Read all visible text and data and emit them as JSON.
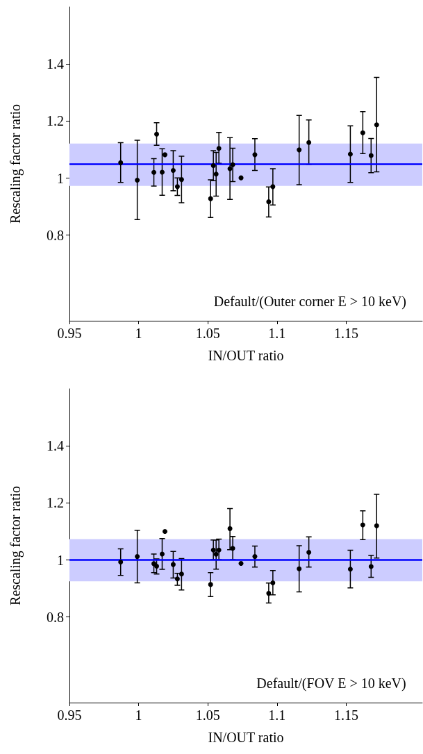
{
  "chart_data": [
    {
      "type": "scatter",
      "xlabel": "IN/OUT ratio",
      "ylabel": "Rescaling factor ratio",
      "annotations": [
        "Default/(Outer corner E > 10 keV)"
      ],
      "x": [
        0.987,
        0.999,
        1.011,
        1.013,
        1.017,
        1.019,
        1.025,
        1.028,
        1.031,
        1.052,
        1.054,
        1.056,
        1.058,
        1.066,
        1.068,
        1.074,
        1.084,
        1.094,
        1.097,
        1.116,
        1.123,
        1.153,
        1.162,
        1.168,
        1.172
      ],
      "series": [
        {
          "color": "#000000",
          "values": [
            1.054,
            0.993,
            1.02,
            1.154,
            1.021,
            1.082,
            1.027,
            0.97,
            0.995,
            0.928,
            1.044,
            1.014,
            1.104,
            1.033,
            1.047,
            1.001,
            1.082,
            0.917,
            0.97,
            1.099,
            1.125,
            1.084,
            1.159,
            1.079,
            1.187
          ],
          "errors": [
            [
              0.985,
              1.124
            ],
            [
              0.855,
              1.133
            ],
            [
              0.972,
              1.068
            ],
            [
              1.115,
              1.194
            ],
            [
              0.94,
              1.103
            ],
            null,
            [
              0.956,
              1.096
            ],
            [
              0.939,
              1.001
            ],
            [
              0.914,
              1.077
            ],
            [
              0.862,
              0.994
            ],
            [
              0.991,
              1.096
            ],
            [
              0.937,
              1.09
            ],
            [
              1.052,
              1.16
            ],
            [
              0.925,
              1.142
            ],
            [
              0.988,
              1.105
            ],
            null,
            [
              1.027,
              1.138
            ],
            [
              0.864,
              0.969
            ],
            [
              0.906,
              1.033
            ],
            [
              0.977,
              1.22
            ],
            [
              1.048,
              1.204
            ],
            [
              0.985,
              1.183
            ],
            [
              1.086,
              1.233
            ],
            [
              1.019,
              1.139
            ],
            [
              1.022,
              1.353
            ]
          ]
        }
      ],
      "ref_lines": [
        {
          "axis": "y",
          "value": 1.047,
          "color": "#0000ff"
        }
      ],
      "bands": [
        {
          "axis": "y",
          "from": 0.973,
          "to": 1.121,
          "color": "#ccccff"
        }
      ],
      "xlim": [
        0.95,
        1.205
      ],
      "xticks": [
        0.95,
        1,
        1.05,
        1.1,
        1.15
      ],
      "ylim": [
        0.5,
        1.6
      ],
      "yticks": [
        0.8,
        1,
        1.2,
        1.4
      ],
      "marker": "circle"
    },
    {
      "type": "scatter",
      "xlabel": "IN/OUT ratio",
      "ylabel": "Rescaling factor ratio",
      "annotations": [
        "Default/(FOV E > 10 keV)"
      ],
      "x": [
        0.987,
        0.999,
        1.011,
        1.013,
        1.017,
        1.019,
        1.025,
        1.028,
        1.031,
        1.052,
        1.054,
        1.056,
        1.058,
        1.066,
        1.068,
        1.074,
        1.084,
        1.094,
        1.097,
        1.116,
        1.123,
        1.153,
        1.162,
        1.168,
        1.172
      ],
      "series": [
        {
          "color": "#000000",
          "values": [
            0.993,
            1.012,
            0.987,
            0.978,
            1.021,
            1.1,
            0.984,
            0.934,
            0.951,
            0.914,
            1.035,
            1.02,
            1.035,
            1.11,
            1.041,
            0.988,
            1.012,
            0.883,
            0.92,
            0.969,
            1.027,
            0.968,
            1.123,
            0.977,
            1.12
          ],
          "errors": [
            [
              0.946,
              1.039
            ],
            [
              0.92,
              1.104
            ],
            [
              0.956,
              1.021
            ],
            [
              0.951,
              1.004
            ],
            [
              0.967,
              1.075
            ],
            null,
            [
              0.937,
              1.03
            ],
            [
              0.911,
              0.953
            ],
            [
              0.895,
              1.005
            ],
            [
              0.872,
              0.956
            ],
            [
              1.001,
              1.07
            ],
            [
              0.968,
              1.07
            ],
            [
              1.001,
              1.073
            ],
            [
              1.036,
              1.18
            ],
            [
              1.001,
              1.082
            ],
            null,
            [
              0.975,
              1.049
            ],
            [
              0.849,
              0.919
            ],
            [
              0.878,
              0.963
            ],
            [
              0.888,
              1.05
            ],
            [
              0.975,
              1.081
            ],
            [
              0.902,
              1.034
            ],
            [
              1.071,
              1.172
            ],
            [
              0.939,
              1.016
            ],
            [
              1.007,
              1.23
            ]
          ]
        }
      ],
      "ref_lines": [
        {
          "axis": "y",
          "value": 1.0,
          "color": "#0000ff"
        }
      ],
      "bands": [
        {
          "axis": "y",
          "from": 0.925,
          "to": 1.073,
          "color": "#ccccff"
        }
      ],
      "xlim": [
        0.95,
        1.205
      ],
      "xticks": [
        0.95,
        1,
        1.05,
        1.1,
        1.15
      ],
      "ylim": [
        0.5,
        1.6
      ],
      "yticks": [
        0.8,
        1,
        1.2,
        1.4
      ],
      "marker": "circle"
    }
  ]
}
